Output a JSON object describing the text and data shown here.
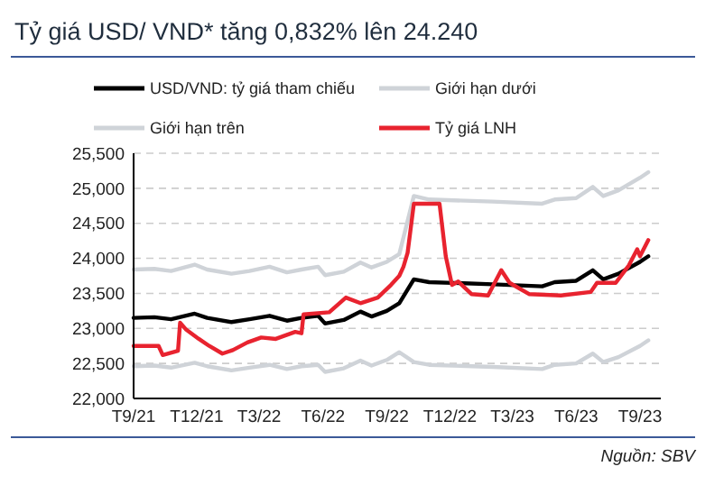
{
  "chart_data": {
    "type": "line",
    "title": "Tỷ giá USD/ VND* tăng 0,832% lên 24.240",
    "annotations": [
      "Nguồn: SBV"
    ],
    "xlim": [
      "2021-09",
      "2023-10"
    ],
    "xticks": [
      {
        "value": "2021-09",
        "label": "T9/21"
      },
      {
        "value": "2021-12",
        "label": "T12/21"
      },
      {
        "value": "2022-03",
        "label": "T3/22"
      },
      {
        "value": "2022-06",
        "label": "T6/22"
      },
      {
        "value": "2022-09",
        "label": "T9/22"
      },
      {
        "value": "2022-12",
        "label": "T12/22"
      },
      {
        "value": "2023-03",
        "label": "T3/23"
      },
      {
        "value": "2023-06",
        "label": "T6/23"
      },
      {
        "value": "2023-09",
        "label": "T9/23"
      }
    ],
    "ylim": [
      22000,
      25500
    ],
    "yticks": [
      {
        "value": 22000,
        "label": "22,000"
      },
      {
        "value": 22500,
        "label": "22,500"
      },
      {
        "value": 23000,
        "label": "23,000"
      },
      {
        "value": 23500,
        "label": "23,500"
      },
      {
        "value": 24000,
        "label": "24,000"
      },
      {
        "value": 24500,
        "label": "24,500"
      },
      {
        "value": 25000,
        "label": "25,000"
      },
      {
        "value": 25500,
        "label": "25,500"
      }
    ],
    "grid": "y",
    "legend": "top",
    "marker": "none",
    "line_style": "solid",
    "series": [
      {
        "name": "USD/VND: tỷ giá tham chiếu",
        "color": "#000000",
        "x": [
          "2021-09-01",
          "2021-10-01",
          "2021-10-25",
          "2021-11-28",
          "2021-12-16",
          "2022-01-20",
          "2022-02-15",
          "2022-03-16",
          "2022-04-10",
          "2022-05-01",
          "2022-05-25",
          "2022-06-04",
          "2022-07-01",
          "2022-07-25",
          "2022-08-10",
          "2022-09-01",
          "2022-09-19",
          "2022-10-10",
          "2022-11-01",
          "2023-02-01",
          "2023-04-13",
          "2023-05-01",
          "2023-06-01",
          "2023-06-25",
          "2023-07-10",
          "2023-08-01",
          "2023-09-01",
          "2023-09-13"
        ],
        "values": [
          23150,
          23160,
          23130,
          23210,
          23150,
          23090,
          23130,
          23180,
          23110,
          23150,
          23180,
          23070,
          23120,
          23240,
          23170,
          23250,
          23360,
          23700,
          23660,
          23630,
          23600,
          23660,
          23680,
          23830,
          23700,
          23780,
          23950,
          24030
        ]
      },
      {
        "name": "Giới hạn dưới",
        "color": "#cfd3d8",
        "x": [
          "2021-09-01",
          "2021-10-01",
          "2021-10-25",
          "2021-11-28",
          "2021-12-16",
          "2022-01-20",
          "2022-02-15",
          "2022-03-16",
          "2022-04-10",
          "2022-05-01",
          "2022-05-25",
          "2022-06-04",
          "2022-07-01",
          "2022-07-25",
          "2022-08-10",
          "2022-09-01",
          "2022-09-19",
          "2022-10-10",
          "2022-11-01",
          "2023-02-01",
          "2023-04-13",
          "2023-05-01",
          "2023-06-01",
          "2023-06-25",
          "2023-07-10",
          "2023-08-01",
          "2023-09-01",
          "2023-09-13"
        ],
        "values": [
          22460,
          22470,
          22440,
          22510,
          22460,
          22400,
          22440,
          22480,
          22420,
          22460,
          22480,
          22380,
          22430,
          22540,
          22470,
          22550,
          22660,
          22520,
          22480,
          22450,
          22420,
          22480,
          22500,
          22640,
          22520,
          22590,
          22750,
          22830
        ]
      },
      {
        "name": "Giới hạn trên",
        "color": "#cfd3d8",
        "x": [
          "2021-09-01",
          "2021-10-01",
          "2021-10-25",
          "2021-11-28",
          "2021-12-16",
          "2022-01-20",
          "2022-02-15",
          "2022-03-16",
          "2022-04-10",
          "2022-05-01",
          "2022-05-25",
          "2022-06-04",
          "2022-07-01",
          "2022-07-25",
          "2022-08-10",
          "2022-09-01",
          "2022-09-19",
          "2022-10-10",
          "2022-11-01",
          "2023-02-01",
          "2023-04-13",
          "2023-05-01",
          "2023-06-01",
          "2023-06-25",
          "2023-07-10",
          "2023-08-01",
          "2023-09-01",
          "2023-09-13"
        ],
        "values": [
          23840,
          23850,
          23820,
          23910,
          23840,
          23780,
          23820,
          23880,
          23800,
          23840,
          23880,
          23760,
          23810,
          23940,
          23870,
          23950,
          24060,
          24890,
          24840,
          24810,
          24780,
          24840,
          24860,
          25020,
          24890,
          24970,
          25150,
          25230
        ]
      },
      {
        "name": "Tỷ giá LNH",
        "color": "#e8232f",
        "x": [
          "2021-09-01",
          "2021-10-07",
          "2021-10-13",
          "2021-11-04",
          "2021-11-07",
          "2021-11-16",
          "2021-12-04",
          "2021-12-19",
          "2022-01-07",
          "2022-01-22",
          "2022-02-12",
          "2022-03-04",
          "2022-03-25",
          "2022-04-22",
          "2022-05-01",
          "2022-05-04",
          "2022-06-10",
          "2022-07-04",
          "2022-07-25",
          "2022-08-19",
          "2022-09-07",
          "2022-09-19",
          "2022-09-25",
          "2022-10-01",
          "2022-10-10",
          "2022-11-16",
          "2022-11-25",
          "2022-12-04",
          "2022-12-13",
          "2023-01-01",
          "2023-01-25",
          "2023-02-13",
          "2023-02-25",
          "2023-03-25",
          "2023-05-10",
          "2023-06-22",
          "2023-07-01",
          "2023-07-28",
          "2023-08-16",
          "2023-08-28",
          "2023-09-01",
          "2023-09-13"
        ],
        "values": [
          22750,
          22750,
          22620,
          22680,
          23080,
          22980,
          22850,
          22750,
          22640,
          22690,
          22800,
          22870,
          22850,
          22950,
          22930,
          23200,
          23230,
          23440,
          23360,
          23440,
          23620,
          23750,
          23880,
          24080,
          24780,
          24780,
          24030,
          23620,
          23670,
          23490,
          23470,
          23830,
          23650,
          23490,
          23470,
          23520,
          23650,
          23650,
          23900,
          24130,
          24030,
          24260
        ]
      }
    ]
  }
}
